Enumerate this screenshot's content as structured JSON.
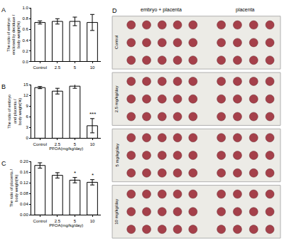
{
  "chart_data": [
    {
      "type": "bar",
      "title": "A",
      "y_label": "The ratio of embryo\nenclosed by deciduae /\nbody weight(%)",
      "categories": [
        "Control",
        "2.5",
        "5",
        "10"
      ],
      "values": [
        0.73,
        0.75,
        0.75,
        0.73
      ],
      "errors": [
        0.03,
        0.05,
        0.08,
        0.15
      ],
      "color": "#ffffff",
      "ylim": [
        0,
        1.0
      ],
      "yticks": [
        {
          "value": 0,
          "label": "0.0"
        },
        0.2,
        0.4,
        0.6,
        0.8,
        {
          "value": 1.0,
          "label": "1.0"
        }
      ],
      "grid": false
    },
    {
      "type": "bar",
      "title": "B",
      "x_label": "PFOA(mg/kg/day)",
      "y_label": "The ratio of embryo\nand placenta /\nbody weight(%)",
      "categories": [
        "Control",
        "2.5",
        "5",
        "10"
      ],
      "values": [
        14.2,
        13.2,
        14.6,
        3.5
      ],
      "errors": [
        0.3,
        0.8,
        0.6,
        2.0
      ],
      "color": "#ffffff",
      "ylim": [
        0,
        15
      ],
      "yticks": [
        0,
        3,
        6,
        9,
        12,
        15
      ],
      "grid": false,
      "annotations": [
        {
          "text": "***",
          "category": "10"
        }
      ]
    },
    {
      "type": "bar",
      "title": "C",
      "x_label": "PFOA(mg/kg/day)",
      "y_label": "The ratio of placenta /\nbody weight(%)",
      "categories": [
        "Control",
        "2.5",
        "5",
        "10"
      ],
      "values": [
        0.185,
        0.148,
        0.13,
        0.122
      ],
      "errors": [
        0.01,
        0.01,
        0.01,
        0.01
      ],
      "color": "#ffffff",
      "ylim": [
        0,
        0.2
      ],
      "yticks": [
        {
          "value": 0,
          "label": "0.00"
        },
        0.04,
        0.08,
        0.12,
        0.16,
        {
          "value": 0.2,
          "label": "0.20"
        }
      ],
      "grid": false,
      "annotations": [
        {
          "text": "*",
          "category": "5"
        },
        {
          "text": "*",
          "category": "10"
        }
      ]
    }
  ],
  "panel_d": {
    "title": "D",
    "columns": [
      "embryo + placenta",
      "placenta"
    ],
    "rows": [
      "Control",
      "2.5 mg/kg/day",
      "5 mg/kg/day",
      "10 mg/kg/day"
    ]
  }
}
